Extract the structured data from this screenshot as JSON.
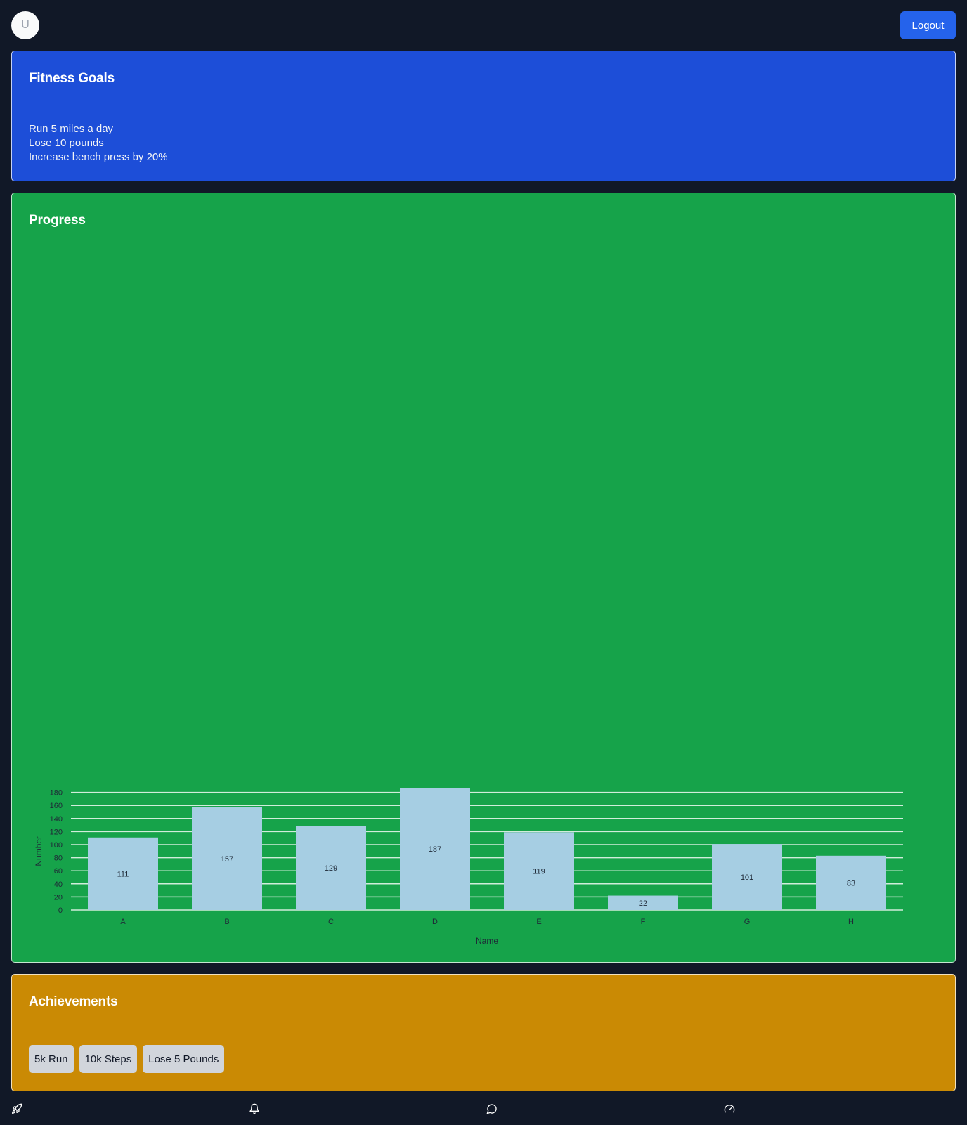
{
  "header": {
    "avatar_initial": "U",
    "logout_label": "Logout"
  },
  "goals": {
    "title": "Fitness Goals",
    "items": [
      "Run 5 miles a day",
      "Lose 10 pounds",
      "Increase bench press by 20%"
    ]
  },
  "progress": {
    "title": "Progress"
  },
  "chart_data": {
    "type": "bar",
    "categories": [
      "A",
      "B",
      "C",
      "D",
      "E",
      "F",
      "G",
      "H"
    ],
    "values": [
      111,
      157,
      129,
      187,
      119,
      22,
      101,
      83
    ],
    "xlabel": "Name",
    "ylabel": "Number",
    "ylim": [
      0,
      180
    ],
    "yticks": [
      0,
      20,
      40,
      60,
      80,
      100,
      120,
      140,
      160,
      180
    ],
    "grid": true,
    "bar_color": "#a6cee3"
  },
  "achievements": {
    "title": "Achievements",
    "badges": [
      "5k Run",
      "10k Steps",
      "Lose 5 Pounds"
    ]
  },
  "bottom_nav": {
    "icons": [
      "rocket-icon",
      "bell-icon",
      "message-icon",
      "gauge-icon"
    ]
  },
  "colors": {
    "background": "#111827",
    "goals_card": "#1d4ed8",
    "progress_card": "#16a34a",
    "achievements_card": "#ca8a04",
    "logout_button": "#2563eb"
  }
}
